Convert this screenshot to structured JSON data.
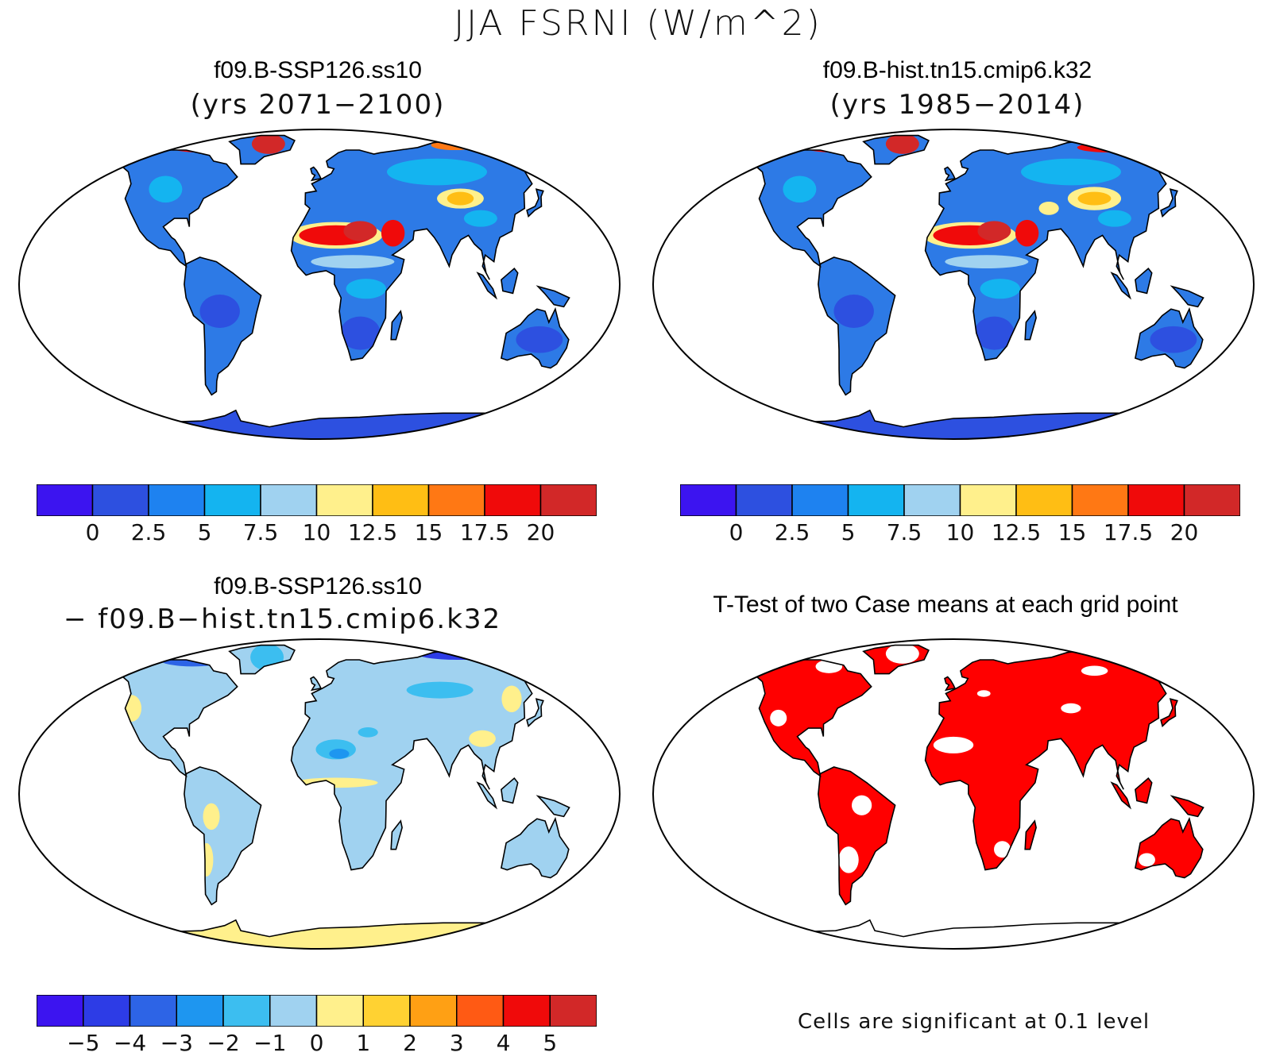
{
  "title": "JJA FSRNI (W/m^2)",
  "panels": [
    {
      "id": "case",
      "title": "f09.B-SSP126.ss10",
      "subtitle": "(yrs 2071−2100)",
      "map_style": "case_ssp"
    },
    {
      "id": "control",
      "title": "f09.B-hist.tn15.cmip6.k32",
      "subtitle": "(yrs 1985−2014)",
      "map_style": "case_hist"
    },
    {
      "id": "diff",
      "title": "f09.B-SSP126.ss10",
      "subtitle": "− f09.B−hist.tn15.cmip6.k32",
      "map_style": "diff"
    },
    {
      "id": "ttest",
      "title": "T-Test of two Case means at each grid point",
      "subtitle": "",
      "map_style": "ttest",
      "note": "Cells are significant at 0.1 level"
    }
  ],
  "colorbars": {
    "abs": {
      "colors": [
        "#3c14f0",
        "#2d50e0",
        "#1e82f0",
        "#14b4f0",
        "#a0d2f0",
        "#fff08c",
        "#ffbe14",
        "#ff7814",
        "#f00a0a",
        "#d22828"
      ],
      "labels": [
        "0",
        "2.5",
        "5",
        "7.5",
        "10",
        "12.5",
        "15",
        "17.5",
        "20"
      ]
    },
    "diff": {
      "colors": [
        "#3c14f0",
        "#2d3ce6",
        "#2d64e6",
        "#1e96f0",
        "#3cbef0",
        "#a0d2f0",
        "#fff08c",
        "#ffd232",
        "#ffa014",
        "#ff5a14",
        "#f00a0a",
        "#d22828"
      ],
      "labels": [
        "−5",
        "−4",
        "−3",
        "−2",
        "−1",
        "0",
        "1",
        "2",
        "3",
        "4",
        "5"
      ]
    }
  },
  "palette": {
    "land_base_abs": "#2d7ae6",
    "land_base_diff": "#a0d2f0",
    "ttest_red": "#ff0000",
    "outline": "#000000"
  }
}
